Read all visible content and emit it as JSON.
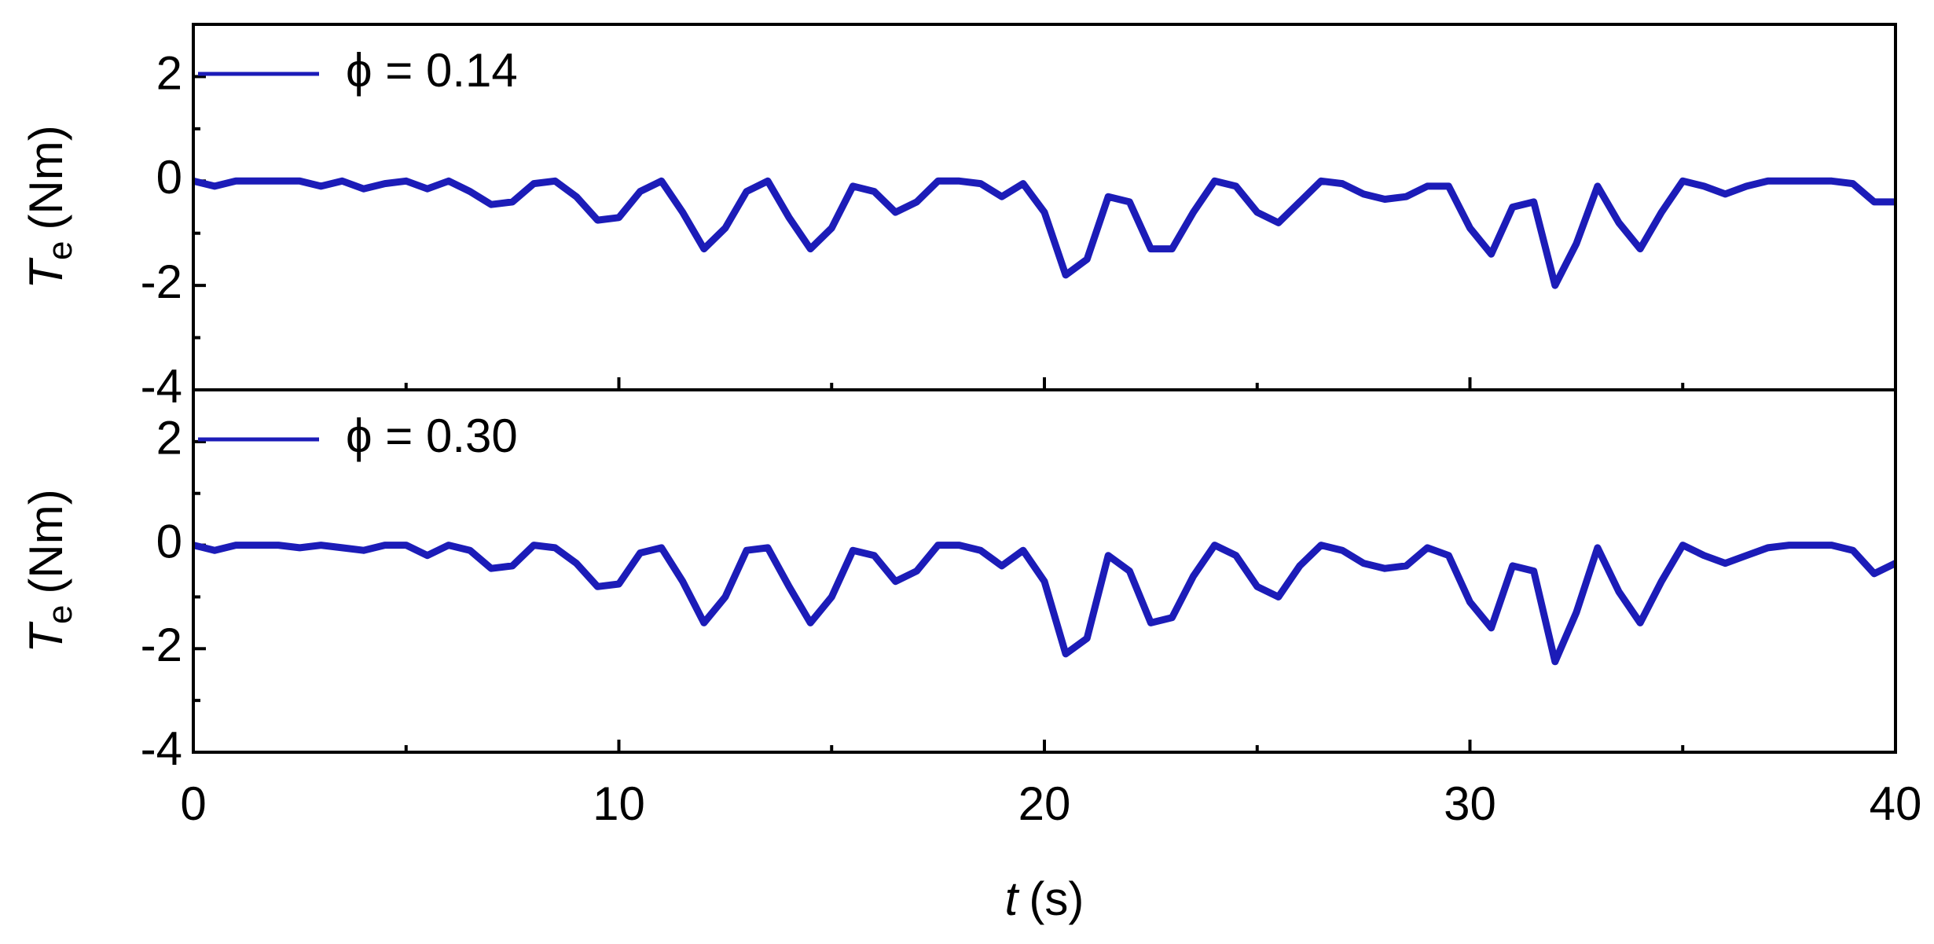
{
  "chart_data": [
    {
      "type": "line",
      "y_label": {
        "symbol": "T",
        "subscript": "e",
        "unit": "(Nm)"
      },
      "x": [
        0,
        0.5,
        1,
        1.5,
        2,
        2.5,
        3,
        3.5,
        4,
        4.5,
        5,
        5.5,
        6,
        6.5,
        7,
        7.5,
        8,
        8.5,
        9,
        9.5,
        10,
        10.5,
        11,
        11.5,
        12,
        12.5,
        13,
        13.5,
        14,
        14.5,
        15,
        15.5,
        16,
        16.5,
        17,
        17.5,
        18,
        18.5,
        19,
        19.5,
        20,
        20.5,
        21,
        21.5,
        22,
        22.5,
        23,
        23.5,
        24,
        24.5,
        25,
        25.5,
        26,
        26.5,
        27,
        27.5,
        28,
        28.5,
        29,
        29.5,
        30,
        30.5,
        31,
        31.5,
        32,
        32.5,
        33,
        33.5,
        34,
        34.5,
        35,
        35.5,
        36,
        36.5,
        37,
        37.5,
        38,
        38.5,
        39,
        39.5,
        40
      ],
      "series": [
        {
          "name": "ϕ = 0.14",
          "color": "#1c1cb8",
          "values": [
            0,
            -0.1,
            0,
            0,
            0,
            0,
            -0.1,
            0,
            -0.15,
            -0.05,
            0,
            -0.15,
            0,
            -0.2,
            -0.45,
            -0.4,
            -0.05,
            0,
            -0.3,
            -0.75,
            -0.7,
            -0.2,
            0,
            -0.6,
            -1.3,
            -0.9,
            -0.2,
            0,
            -0.7,
            -1.3,
            -0.9,
            -0.1,
            -0.2,
            -0.6,
            -0.4,
            0,
            0,
            -0.05,
            -0.3,
            -0.05,
            -0.6,
            -1.8,
            -1.5,
            -0.3,
            -0.4,
            -1.3,
            -1.3,
            -0.6,
            0,
            -0.1,
            -0.6,
            -0.8,
            -0.4,
            0,
            -0.05,
            -0.25,
            -0.35,
            -0.3,
            -0.1,
            -0.1,
            -0.9,
            -1.4,
            -0.5,
            -0.4,
            -2.0,
            -1.2,
            -0.1,
            -0.8,
            -1.3,
            -0.6,
            0,
            -0.1,
            -0.25,
            -0.1,
            0,
            0,
            0,
            0,
            -0.05,
            -0.4,
            -0.4
          ]
        }
      ],
      "xlim": [
        0,
        40
      ],
      "xticks_minor": [
        5,
        15,
        25,
        35
      ],
      "ylim": [
        -4,
        3
      ],
      "yticks": [
        -4,
        -2,
        0,
        2
      ],
      "yticks_minor": [
        -3,
        -1,
        1
      ],
      "legend": "upper left"
    },
    {
      "type": "line",
      "y_label": {
        "symbol": "T",
        "subscript": "e",
        "unit": "(Nm)"
      },
      "x_label": {
        "symbol": "t",
        "unit": "(s)"
      },
      "x": [
        0,
        0.5,
        1,
        1.5,
        2,
        2.5,
        3,
        3.5,
        4,
        4.5,
        5,
        5.5,
        6,
        6.5,
        7,
        7.5,
        8,
        8.5,
        9,
        9.5,
        10,
        10.5,
        11,
        11.5,
        12,
        12.5,
        13,
        13.5,
        14,
        14.5,
        15,
        15.5,
        16,
        16.5,
        17,
        17.5,
        18,
        18.5,
        19,
        19.5,
        20,
        20.5,
        21,
        21.5,
        22,
        22.5,
        23,
        23.5,
        24,
        24.5,
        25,
        25.5,
        26,
        26.5,
        27,
        27.5,
        28,
        28.5,
        29,
        29.5,
        30,
        30.5,
        31,
        31.5,
        32,
        32.5,
        33,
        33.5,
        34,
        34.5,
        35,
        35.5,
        36,
        36.5,
        37,
        37.5,
        38,
        38.5,
        39,
        39.5,
        40
      ],
      "series": [
        {
          "name": "ϕ = 0.30",
          "color": "#1c1cb8",
          "values": [
            0,
            -0.1,
            0,
            0,
            0,
            -0.05,
            0,
            -0.05,
            -0.1,
            0,
            0,
            -0.2,
            0,
            -0.1,
            -0.45,
            -0.4,
            0,
            -0.05,
            -0.35,
            -0.8,
            -0.75,
            -0.15,
            -0.05,
            -0.7,
            -1.5,
            -1.0,
            -0.1,
            -0.05,
            -0.8,
            -1.5,
            -1.0,
            -0.1,
            -0.2,
            -0.7,
            -0.5,
            0,
            0,
            -0.1,
            -0.4,
            -0.1,
            -0.7,
            -2.1,
            -1.8,
            -0.2,
            -0.5,
            -1.5,
            -1.4,
            -0.6,
            0,
            -0.2,
            -0.8,
            -1.0,
            -0.4,
            0,
            -0.1,
            -0.35,
            -0.45,
            -0.4,
            -0.05,
            -0.2,
            -1.1,
            -1.6,
            -0.4,
            -0.5,
            -2.25,
            -1.3,
            -0.05,
            -0.9,
            -1.5,
            -0.7,
            0,
            -0.2,
            -0.35,
            -0.2,
            -0.05,
            0,
            0,
            0,
            -0.1,
            -0.55,
            -0.35
          ]
        }
      ],
      "xlim": [
        0,
        40
      ],
      "xticks": [
        0,
        10,
        20,
        30,
        40
      ],
      "xticks_minor": [
        5,
        15,
        25,
        35
      ],
      "ylim": [
        -4,
        3
      ],
      "yticks": [
        -4,
        -2,
        0,
        2
      ],
      "yticks_minor": [
        -3,
        -1,
        1
      ],
      "legend": "upper left"
    }
  ]
}
